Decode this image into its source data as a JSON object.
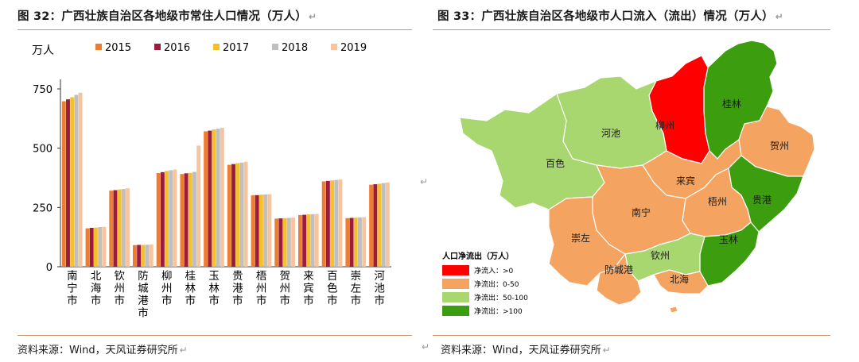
{
  "left": {
    "title": "图 32：广西壮族自治区各地级市常住人口情况（万人）",
    "source": "资料来源：Wind，天风证券研究所"
  },
  "right": {
    "title": "图 33：广西壮族自治区各地级市人口流入（流出）情况（万人）",
    "source": "资料来源：Wind，天风证券研究所",
    "map_legend_title": "人口净流出（万人）",
    "map_legend": [
      {
        "label": "净流入：>0",
        "color": "#ff0000"
      },
      {
        "label": "净流出：0-50",
        "color": "#f4a460"
      },
      {
        "label": "净流出：50-100",
        "color": "#a8d66f"
      },
      {
        "label": "净流出：>100",
        "color": "#3c9e0e"
      }
    ],
    "regions": [
      {
        "name": "桂林",
        "color": "#3c9e0e"
      },
      {
        "name": "柳州",
        "color": "#ff0000"
      },
      {
        "name": "河池",
        "color": "#a8d66f"
      },
      {
        "name": "百色",
        "color": "#a8d66f"
      },
      {
        "name": "贺州",
        "color": "#f4a460"
      },
      {
        "name": "来宾",
        "color": "#f4a460"
      },
      {
        "name": "贵港",
        "color": "#3c9e0e"
      },
      {
        "name": "梧州",
        "color": "#f4a460"
      },
      {
        "name": "南宁",
        "color": "#f4a460"
      },
      {
        "name": "崇左",
        "color": "#f4a460"
      },
      {
        "name": "玉林",
        "color": "#3c9e0e"
      },
      {
        "name": "钦州",
        "color": "#a8d66f"
      },
      {
        "name": "防城港",
        "color": "#f4a460"
      },
      {
        "name": "北海",
        "color": "#f4a460"
      }
    ]
  },
  "chart_data": {
    "type": "bar",
    "ylabel": "万人",
    "ylim": [
      0,
      750
    ],
    "yticks": [
      0,
      250,
      500,
      750
    ],
    "legend_position": "top",
    "categories": [
      "南宁市",
      "北海市",
      "钦州市",
      "防城港市",
      "柳州市",
      "桂林市",
      "玉林市",
      "贵港市",
      "梧州市",
      "贺州市",
      "来宾市",
      "百色市",
      "崇左市",
      "河池市"
    ],
    "series": [
      {
        "name": "2015",
        "color": "#ed7d31",
        "values": [
          698,
          162,
          321,
          91,
          395,
          391,
          571,
          430,
          301,
          203,
          218,
          360,
          205,
          346
        ]
      },
      {
        "name": "2016",
        "color": "#9b1c3c",
        "values": [
          706,
          164,
          323,
          92,
          399,
          394,
          574,
          433,
          302,
          204,
          219,
          362,
          206,
          348
        ]
      },
      {
        "name": "2017",
        "color": "#f5c02c",
        "values": [
          715,
          165,
          326,
          92,
          404,
          396,
          579,
          437,
          304,
          205,
          221,
          364,
          207,
          350
        ]
      },
      {
        "name": "2018",
        "color": "#bfbfbf",
        "values": [
          725,
          167,
          328,
          93,
          407,
          400,
          582,
          439,
          305,
          206,
          222,
          366,
          208,
          353
        ]
      },
      {
        "name": "2019",
        "color": "#f8c49e",
        "values": [
          734,
          168,
          331,
          94,
          410,
          511,
          586,
          443,
          306,
          207,
          223,
          368,
          209,
          355
        ]
      }
    ]
  }
}
